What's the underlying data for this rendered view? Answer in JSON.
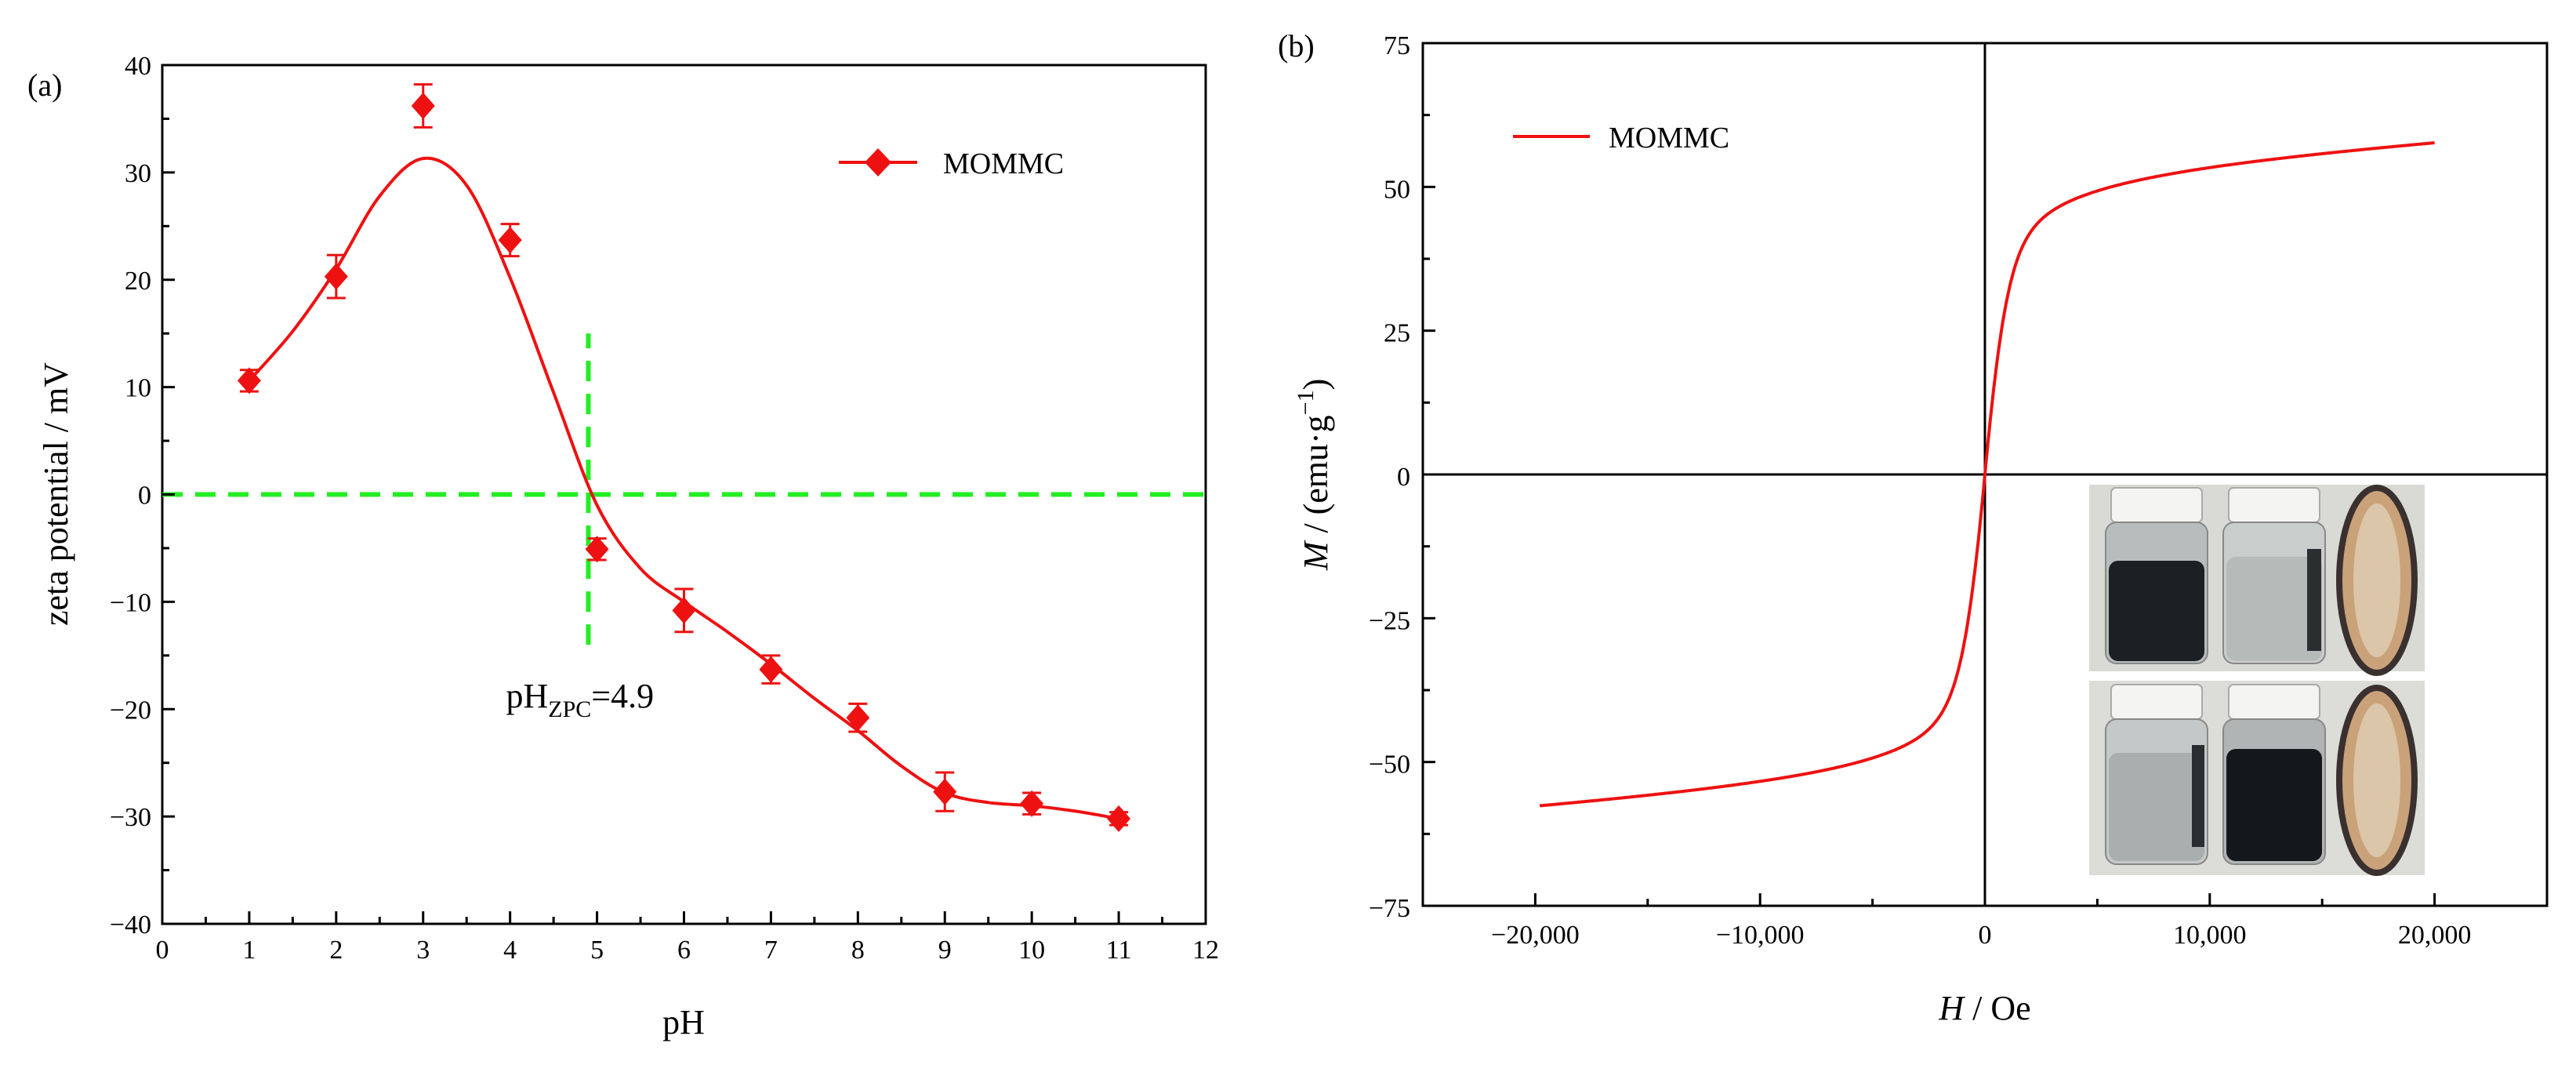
{
  "chart_data": [
    {
      "panel_label": "(a)",
      "type": "scatter",
      "xlabel": "pH",
      "ylabel": "zeta potential / mV",
      "xlim": [
        0,
        12
      ],
      "ylim": [
        -40,
        40
      ],
      "x_ticks": [
        0,
        1,
        2,
        3,
        4,
        5,
        6,
        7,
        8,
        9,
        10,
        11,
        12
      ],
      "y_ticks": [
        -40,
        -30,
        -20,
        -10,
        0,
        10,
        20,
        30,
        40
      ],
      "x_tick_labels": [
        "0",
        "1",
        "2",
        "3",
        "4",
        "5",
        "6",
        "7",
        "8",
        "9",
        "10",
        "11",
        "12"
      ],
      "y_tick_labels": [
        "−40",
        "−30",
        "−20",
        "−10",
        "0",
        "10",
        "20",
        "30",
        "40"
      ],
      "grid": false,
      "legend": {
        "position": "top-right",
        "entries": [
          "MOMMC"
        ]
      },
      "series": [
        {
          "name": "MOMMC",
          "color": "#ee1111",
          "marker": "diamond",
          "x": [
            1,
            2,
            3,
            4,
            5,
            6,
            7,
            8,
            9,
            10,
            11
          ],
          "y": [
            10.6,
            20.3,
            36.2,
            23.7,
            -5.1,
            -10.8,
            -16.3,
            -20.8,
            -27.7,
            -28.8,
            -30.2
          ],
          "error": [
            1.0,
            2.0,
            2.0,
            1.5,
            1.0,
            2.0,
            1.3,
            1.3,
            1.8,
            1.0,
            0.6
          ]
        }
      ],
      "fit_curve": {
        "color": "#ee1111",
        "x": [
          1,
          1.5,
          2,
          2.5,
          3,
          3.5,
          4,
          4.5,
          5,
          5.5,
          6,
          6.5,
          7,
          7.5,
          8,
          8.5,
          9,
          9.5,
          10,
          10.5,
          11
        ],
        "y": [
          10.6,
          15.2,
          21.0,
          27.8,
          31.3,
          28.8,
          20.2,
          9.5,
          -1.0,
          -6.9,
          -10.0,
          -12.8,
          -15.8,
          -19.0,
          -22.0,
          -25.3,
          -27.8,
          -28.7,
          -29.0,
          -29.5,
          -30.2
        ]
      },
      "reference_lines": {
        "color": "#22ee22",
        "horizontal_y": 0,
        "vertical_x": 4.9,
        "vertical_y_range": [
          -14,
          15
        ]
      },
      "annotation": {
        "main": "pH",
        "subscript": "ZPC",
        "suffix": "=4.9",
        "x": 4.9,
        "y": -18
      }
    },
    {
      "panel_label": "(b)",
      "type": "line",
      "xlabel_var": "H",
      "xlabel_unit": " / Oe",
      "ylabel_var": "M",
      "ylabel_unit": " / (emu·g",
      "ylabel_sup": "−1",
      "ylabel_close": ")",
      "xlim": [
        -25000,
        25000
      ],
      "ylim": [
        -75,
        75
      ],
      "x_ticks": [
        -20000,
        -10000,
        0,
        10000,
        20000
      ],
      "y_ticks": [
        -75,
        -50,
        -25,
        0,
        25,
        50,
        75
      ],
      "x_tick_labels": [
        "−20,000",
        "−10,000",
        "0",
        "10,000",
        "20,000"
      ],
      "y_tick_labels": [
        "−75",
        "−50",
        "−25",
        "0",
        "25",
        "50",
        "75"
      ],
      "grid": false,
      "legend": {
        "position": "top-left",
        "entries": [
          "MOMMC"
        ]
      },
      "series": [
        {
          "name": "MOMMC",
          "color": "#ee1111",
          "x_range": [
            -19800,
            20000
          ],
          "saturation_magnetization": 59.7,
          "inflection_field": 180
        }
      ],
      "inset": {
        "description": "photo of vials of dispersion before and after magnetic separation",
        "position": "bottom-right"
      }
    }
  ]
}
